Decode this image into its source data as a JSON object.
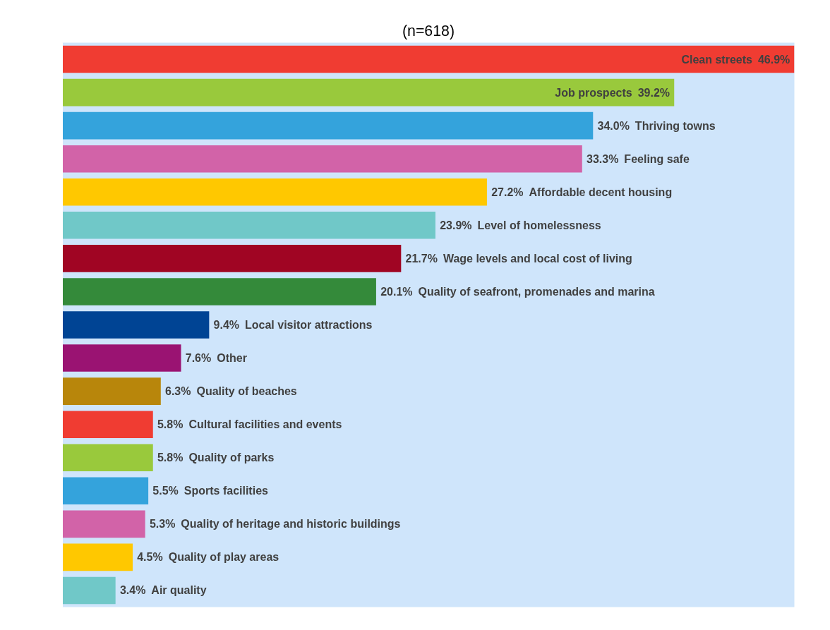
{
  "chart_data": {
    "type": "bar",
    "orientation": "horizontal",
    "title": "(n=618)",
    "grid": false,
    "categories": [
      "Clean streets",
      "Job prospects",
      "Thriving towns",
      "Feeling safe",
      "Affordable decent housing",
      "Level of homelessness",
      "Wage levels and local cost of living",
      "Quality of seafront, promenades and marina",
      "Local visitor attractions",
      "Other",
      "Quality of beaches",
      "Cultural facilities and events",
      "Quality of parks",
      "Sports facilities",
      "Quality of heritage and historic buildings",
      "Quality of play areas",
      "Air quality"
    ],
    "values": [
      46.9,
      39.2,
      34.0,
      33.3,
      27.2,
      23.9,
      21.7,
      20.1,
      9.4,
      7.6,
      6.3,
      5.8,
      5.8,
      5.5,
      5.3,
      4.5,
      3.4
    ],
    "value_labels": [
      "46.9%",
      "39.2%",
      "34.0%",
      "33.3%",
      "27.2%",
      "23.9%",
      "21.7%",
      "20.1%",
      "9.4%",
      "7.6%",
      "6.3%",
      "5.8%",
      "5.8%",
      "5.5%",
      "5.3%",
      "4.5%",
      "3.4%"
    ],
    "colors": [
      "#f03c32",
      "#99c93c",
      "#34a3dc",
      "#d263a8",
      "#ffc800",
      "#70c8c8",
      "#a00523",
      "#348a3a",
      "#004494",
      "#9a1372",
      "#b8860b",
      "#f03c32",
      "#99c93c",
      "#34a3dc",
      "#d263a8",
      "#ffc800",
      "#70c8c8"
    ]
  }
}
